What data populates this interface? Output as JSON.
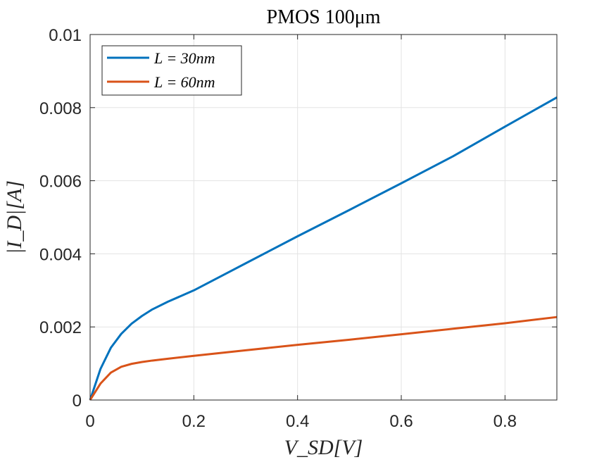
{
  "chart_data": {
    "type": "line",
    "title": "PMOS 100μm",
    "xlabel": "V_SD[V]",
    "ylabel": "|I_D|[A]",
    "xlim": [
      0,
      0.9
    ],
    "ylim": [
      0,
      0.01
    ],
    "xticks": [
      0,
      0.2,
      0.4,
      0.6,
      0.8
    ],
    "xtick_labels": [
      "0",
      "0.2",
      "0.4",
      "0.6",
      "0.8"
    ],
    "yticks": [
      0,
      0.002,
      0.004,
      0.006,
      0.008,
      0.01
    ],
    "ytick_labels": [
      "0",
      "0.002",
      "0.004",
      "0.006",
      "0.008",
      "0.01"
    ],
    "grid": true,
    "legend_position": "top-left",
    "series": [
      {
        "name": "L = 30nm",
        "color": "#0072BD",
        "x": [
          0,
          0.02,
          0.04,
          0.06,
          0.08,
          0.1,
          0.12,
          0.15,
          0.2,
          0.3,
          0.4,
          0.5,
          0.6,
          0.7,
          0.8,
          0.9
        ],
        "y": [
          0,
          0.00085,
          0.00143,
          0.00181,
          0.00209,
          0.0023,
          0.00248,
          0.00269,
          0.003,
          0.00374,
          0.00448,
          0.0052,
          0.00593,
          0.00667,
          0.00748,
          0.00828
        ]
      },
      {
        "name": "L = 60nm",
        "color": "#D95319",
        "x": [
          0,
          0.02,
          0.04,
          0.06,
          0.08,
          0.1,
          0.12,
          0.15,
          0.2,
          0.3,
          0.4,
          0.5,
          0.6,
          0.7,
          0.8,
          0.9
        ],
        "y": [
          0,
          0.00045,
          0.00075,
          0.00091,
          0.00099,
          0.00104,
          0.00108,
          0.00113,
          0.00121,
          0.00136,
          0.00151,
          0.00165,
          0.0018,
          0.00195,
          0.0021,
          0.00227
        ]
      }
    ]
  }
}
